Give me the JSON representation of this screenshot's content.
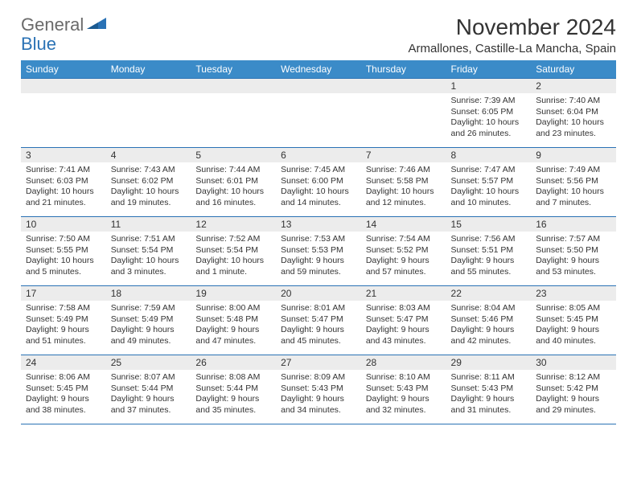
{
  "logo": {
    "general": "General",
    "blue": "Blue"
  },
  "title": "November 2024",
  "location": "Armallones, Castille-La Mancha, Spain",
  "colors": {
    "header_bg": "#3b8bc8",
    "row_border": "#2a72b5",
    "daynum_bg": "#ececec",
    "logo_gray": "#6a6a6a",
    "logo_blue": "#2a72b5"
  },
  "weekdays": [
    "Sunday",
    "Monday",
    "Tuesday",
    "Wednesday",
    "Thursday",
    "Friday",
    "Saturday"
  ],
  "weeks": [
    [
      null,
      null,
      null,
      null,
      null,
      {
        "n": "1",
        "sr": "7:39 AM",
        "ss": "6:05 PM",
        "dl": "10 hours and 26 minutes."
      },
      {
        "n": "2",
        "sr": "7:40 AM",
        "ss": "6:04 PM",
        "dl": "10 hours and 23 minutes."
      }
    ],
    [
      {
        "n": "3",
        "sr": "7:41 AM",
        "ss": "6:03 PM",
        "dl": "10 hours and 21 minutes."
      },
      {
        "n": "4",
        "sr": "7:43 AM",
        "ss": "6:02 PM",
        "dl": "10 hours and 19 minutes."
      },
      {
        "n": "5",
        "sr": "7:44 AM",
        "ss": "6:01 PM",
        "dl": "10 hours and 16 minutes."
      },
      {
        "n": "6",
        "sr": "7:45 AM",
        "ss": "6:00 PM",
        "dl": "10 hours and 14 minutes."
      },
      {
        "n": "7",
        "sr": "7:46 AM",
        "ss": "5:58 PM",
        "dl": "10 hours and 12 minutes."
      },
      {
        "n": "8",
        "sr": "7:47 AM",
        "ss": "5:57 PM",
        "dl": "10 hours and 10 minutes."
      },
      {
        "n": "9",
        "sr": "7:49 AM",
        "ss": "5:56 PM",
        "dl": "10 hours and 7 minutes."
      }
    ],
    [
      {
        "n": "10",
        "sr": "7:50 AM",
        "ss": "5:55 PM",
        "dl": "10 hours and 5 minutes."
      },
      {
        "n": "11",
        "sr": "7:51 AM",
        "ss": "5:54 PM",
        "dl": "10 hours and 3 minutes."
      },
      {
        "n": "12",
        "sr": "7:52 AM",
        "ss": "5:54 PM",
        "dl": "10 hours and 1 minute."
      },
      {
        "n": "13",
        "sr": "7:53 AM",
        "ss": "5:53 PM",
        "dl": "9 hours and 59 minutes."
      },
      {
        "n": "14",
        "sr": "7:54 AM",
        "ss": "5:52 PM",
        "dl": "9 hours and 57 minutes."
      },
      {
        "n": "15",
        "sr": "7:56 AM",
        "ss": "5:51 PM",
        "dl": "9 hours and 55 minutes."
      },
      {
        "n": "16",
        "sr": "7:57 AM",
        "ss": "5:50 PM",
        "dl": "9 hours and 53 minutes."
      }
    ],
    [
      {
        "n": "17",
        "sr": "7:58 AM",
        "ss": "5:49 PM",
        "dl": "9 hours and 51 minutes."
      },
      {
        "n": "18",
        "sr": "7:59 AM",
        "ss": "5:49 PM",
        "dl": "9 hours and 49 minutes."
      },
      {
        "n": "19",
        "sr": "8:00 AM",
        "ss": "5:48 PM",
        "dl": "9 hours and 47 minutes."
      },
      {
        "n": "20",
        "sr": "8:01 AM",
        "ss": "5:47 PM",
        "dl": "9 hours and 45 minutes."
      },
      {
        "n": "21",
        "sr": "8:03 AM",
        "ss": "5:47 PM",
        "dl": "9 hours and 43 minutes."
      },
      {
        "n": "22",
        "sr": "8:04 AM",
        "ss": "5:46 PM",
        "dl": "9 hours and 42 minutes."
      },
      {
        "n": "23",
        "sr": "8:05 AM",
        "ss": "5:45 PM",
        "dl": "9 hours and 40 minutes."
      }
    ],
    [
      {
        "n": "24",
        "sr": "8:06 AM",
        "ss": "5:45 PM",
        "dl": "9 hours and 38 minutes."
      },
      {
        "n": "25",
        "sr": "8:07 AM",
        "ss": "5:44 PM",
        "dl": "9 hours and 37 minutes."
      },
      {
        "n": "26",
        "sr": "8:08 AM",
        "ss": "5:44 PM",
        "dl": "9 hours and 35 minutes."
      },
      {
        "n": "27",
        "sr": "8:09 AM",
        "ss": "5:43 PM",
        "dl": "9 hours and 34 minutes."
      },
      {
        "n": "28",
        "sr": "8:10 AM",
        "ss": "5:43 PM",
        "dl": "9 hours and 32 minutes."
      },
      {
        "n": "29",
        "sr": "8:11 AM",
        "ss": "5:43 PM",
        "dl": "9 hours and 31 minutes."
      },
      {
        "n": "30",
        "sr": "8:12 AM",
        "ss": "5:42 PM",
        "dl": "9 hours and 29 minutes."
      }
    ]
  ],
  "labels": {
    "sunrise": "Sunrise:",
    "sunset": "Sunset:",
    "daylight": "Daylight:"
  }
}
